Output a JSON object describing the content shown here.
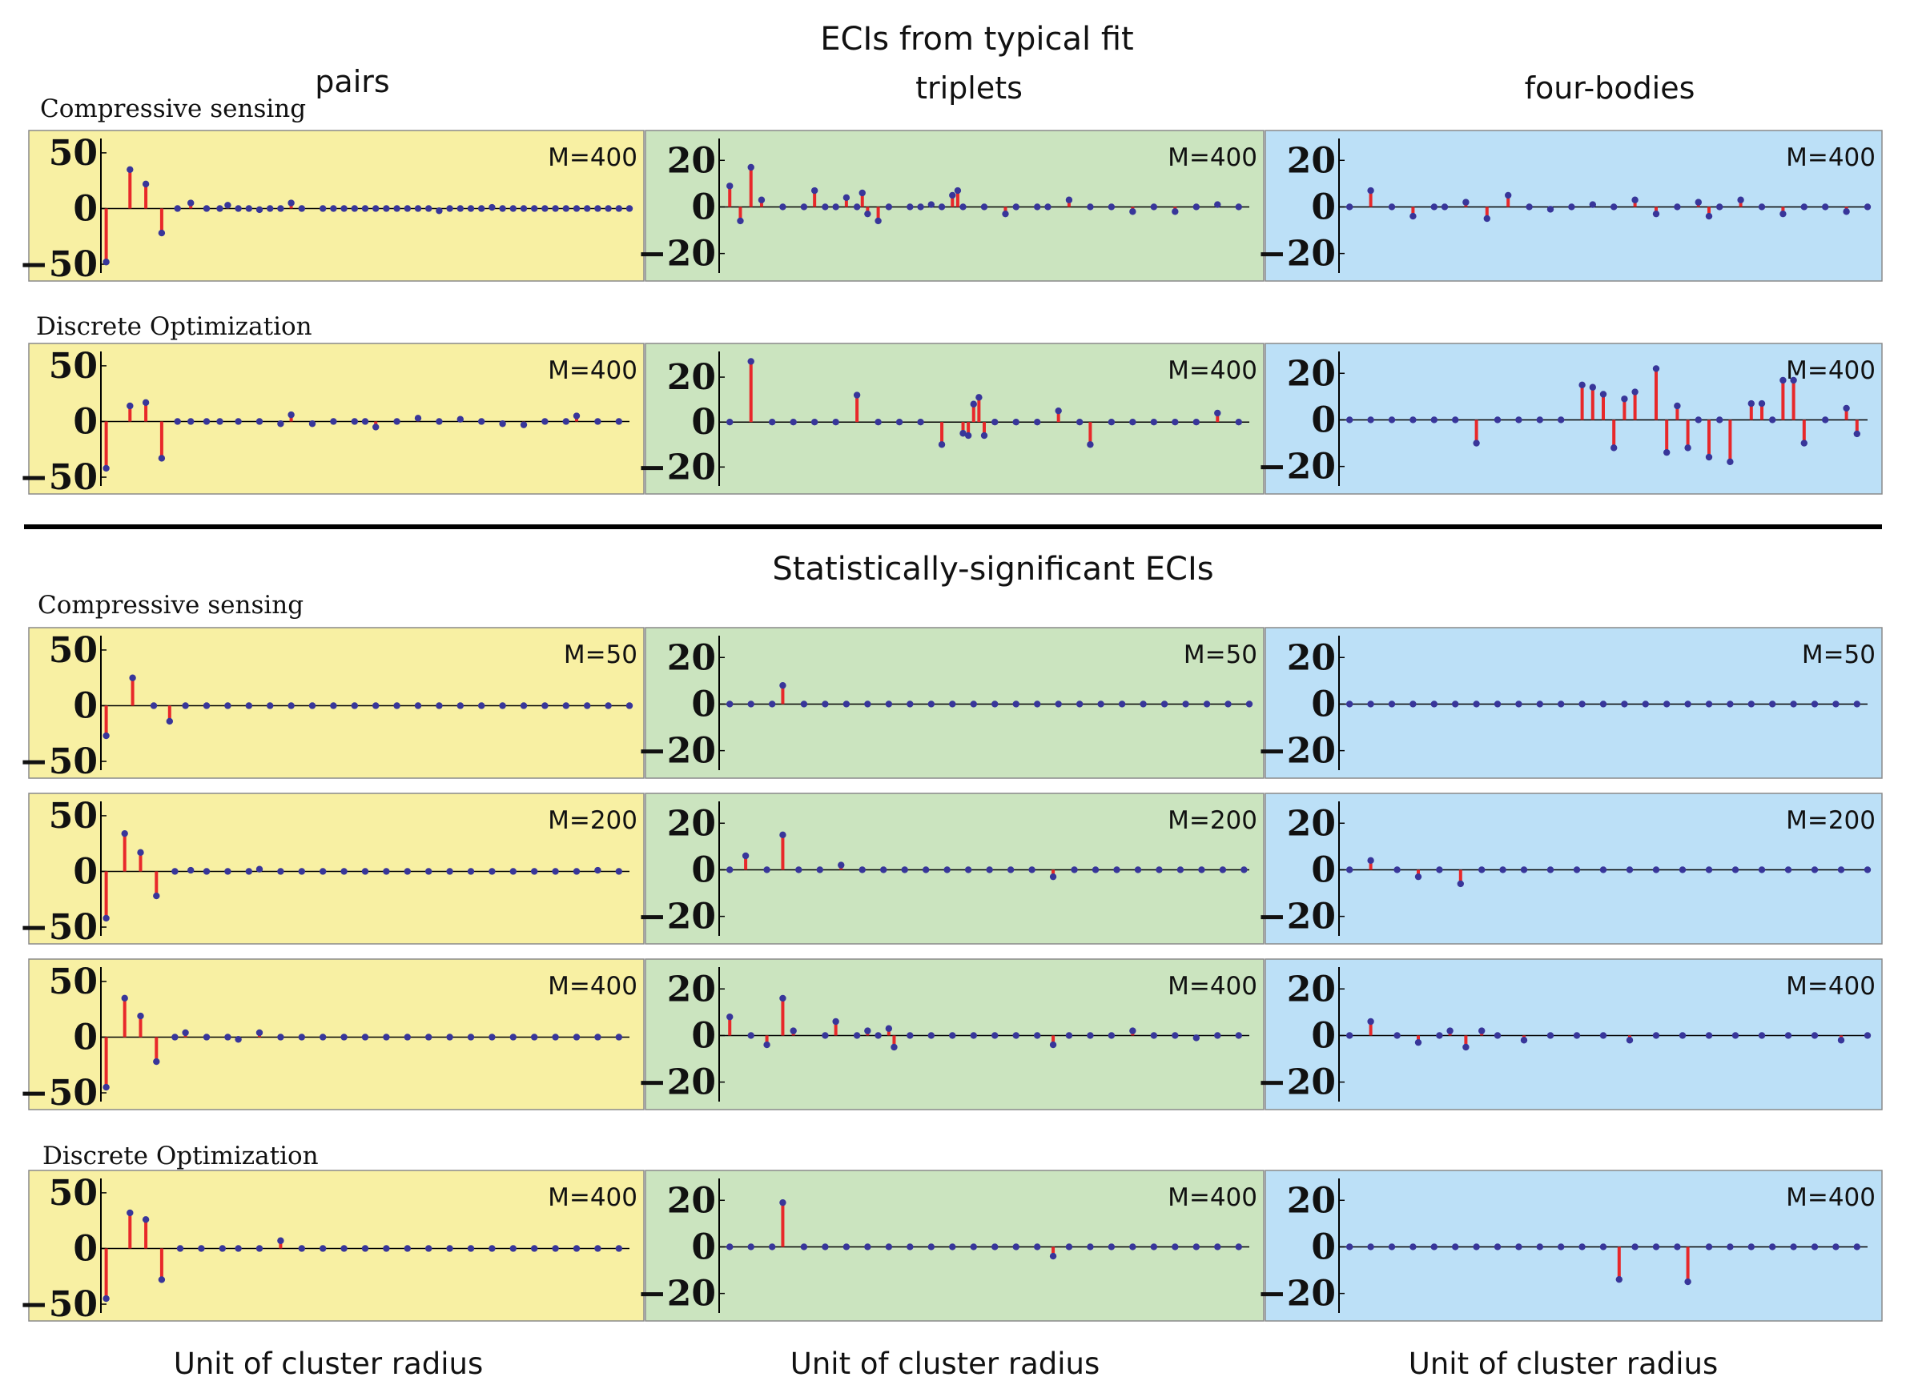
{
  "titles": {
    "top": "ECIs from typical fit",
    "bottom": "Statistically-significant ECIs",
    "col_pairs": "pairs",
    "col_triplets": "triplets",
    "col_fourbodies": "four-bodies",
    "method_cs_1": "Compressive sensing",
    "method_do_1": "Discrete Optimization",
    "method_cs_2": "Compressive sensing",
    "method_do_2": "Discrete Optimization",
    "xlabel_pairs": "Unit of cluster radius",
    "xlabel_triplets": "Unit of cluster radius",
    "xlabel_fourbodies": "Unit of cluster radius"
  },
  "colors": {
    "pairs_bg": "#f8f0a3",
    "triplets_bg": "#cbe4bf",
    "fourbodies_bg": "#bce0f7",
    "stem": "#e8282a",
    "point": "#38369a",
    "axis": "#000000"
  },
  "chart_data": [
    {
      "type": "scatter",
      "section": "ECIs from typical fit",
      "method": "Compressive sensing",
      "cluster": "pairs",
      "label": "M=400",
      "ylim": [
        -55,
        60
      ],
      "yticks": [
        "50",
        "0",
        "−50"
      ],
      "x": [
        0.01,
        0.055,
        0.085,
        0.115,
        0.145,
        0.17,
        0.2,
        0.225,
        0.24,
        0.26,
        0.28,
        0.3,
        0.32,
        0.34,
        0.36,
        0.38,
        0.42,
        0.44,
        0.46,
        0.48,
        0.5,
        0.52,
        0.54,
        0.56,
        0.58,
        0.6,
        0.62,
        0.64,
        0.66,
        0.68,
        0.7,
        0.72,
        0.74,
        0.76,
        0.78,
        0.8,
        0.82,
        0.84,
        0.86,
        0.88,
        0.9,
        0.92,
        0.94,
        0.96,
        0.98,
        1.0
      ],
      "y": [
        -48,
        35,
        22,
        -22,
        0,
        5,
        0,
        0,
        3,
        0,
        0,
        -1,
        0,
        0,
        5,
        0,
        0,
        0,
        0,
        0,
        0,
        0,
        0,
        0,
        0,
        0,
        0,
        -2,
        0,
        0,
        0,
        0,
        1,
        0,
        0,
        0,
        0,
        0,
        0,
        0,
        0,
        0,
        0,
        0,
        0,
        0
      ]
    },
    {
      "type": "scatter",
      "section": "ECIs from typical fit",
      "method": "Compressive sensing",
      "cluster": "triplets",
      "label": "M=400",
      "ylim": [
        -27,
        28
      ],
      "yticks": [
        "20",
        "0",
        "−20"
      ],
      "x": [
        0.02,
        0.04,
        0.06,
        0.08,
        0.12,
        0.16,
        0.18,
        0.2,
        0.22,
        0.24,
        0.26,
        0.27,
        0.28,
        0.3,
        0.32,
        0.36,
        0.38,
        0.4,
        0.42,
        0.44,
        0.45,
        0.46,
        0.5,
        0.54,
        0.56,
        0.6,
        0.62,
        0.66,
        0.7,
        0.74,
        0.78,
        0.82,
        0.86,
        0.9,
        0.94,
        0.98
      ],
      "y": [
        9,
        -6,
        17,
        3,
        0,
        0,
        7,
        0,
        0,
        4,
        0,
        6,
        -3,
        -6,
        0,
        0,
        0,
        1,
        0,
        5,
        7,
        0,
        0,
        -3,
        0,
        0,
        0,
        3,
        0,
        0,
        -2,
        0,
        -2,
        0,
        1,
        0
      ]
    },
    {
      "type": "scatter",
      "section": "ECIs from typical fit",
      "method": "Compressive sensing",
      "cluster": "four-bodies",
      "label": "M=400",
      "ylim": [
        -27,
        28
      ],
      "yticks": [
        "20",
        "0",
        "−20"
      ],
      "x": [
        0.02,
        0.06,
        0.1,
        0.14,
        0.18,
        0.2,
        0.24,
        0.28,
        0.32,
        0.36,
        0.4,
        0.44,
        0.48,
        0.52,
        0.56,
        0.6,
        0.64,
        0.68,
        0.7,
        0.72,
        0.76,
        0.8,
        0.84,
        0.88,
        0.92,
        0.96,
        1.0
      ],
      "y": [
        0,
        7,
        0,
        -4,
        0,
        0,
        2,
        -5,
        5,
        0,
        -1,
        0,
        1,
        0,
        3,
        -3,
        0,
        2,
        -4,
        0,
        3,
        0,
        -3,
        0,
        0,
        -2,
        0
      ]
    },
    {
      "type": "scatter",
      "section": "ECIs from typical fit",
      "method": "Discrete Optimization",
      "cluster": "pairs",
      "label": "M=400",
      "ylim": [
        -55,
        60
      ],
      "yticks": [
        "50",
        "0",
        "−50"
      ],
      "x": [
        0.01,
        0.055,
        0.085,
        0.115,
        0.145,
        0.17,
        0.2,
        0.225,
        0.26,
        0.3,
        0.34,
        0.36,
        0.4,
        0.44,
        0.48,
        0.5,
        0.52,
        0.56,
        0.6,
        0.64,
        0.68,
        0.72,
        0.76,
        0.8,
        0.84,
        0.88,
        0.9,
        0.94,
        0.98
      ],
      "y": [
        -42,
        14,
        17,
        -33,
        0,
        0,
        0,
        0,
        0,
        0,
        -2,
        6,
        -2,
        0,
        0,
        0,
        -5,
        0,
        3,
        0,
        2,
        0,
        -2,
        -3,
        0,
        0,
        5,
        0,
        0
      ]
    },
    {
      "type": "scatter",
      "section": "ECIs from typical fit",
      "method": "Discrete Optimization",
      "cluster": "triplets",
      "label": "M=400",
      "ylim": [
        -27,
        30
      ],
      "yticks": [
        "20",
        "0",
        "−20"
      ],
      "x": [
        0.02,
        0.06,
        0.1,
        0.14,
        0.18,
        0.22,
        0.26,
        0.3,
        0.34,
        0.38,
        0.42,
        0.46,
        0.47,
        0.48,
        0.49,
        0.5,
        0.52,
        0.56,
        0.6,
        0.64,
        0.68,
        0.7,
        0.74,
        0.78,
        0.82,
        0.86,
        0.9,
        0.94,
        0.98
      ],
      "y": [
        0,
        27,
        0,
        0,
        0,
        0,
        12,
        0,
        0,
        0,
        -10,
        -5,
        -6,
        8,
        11,
        -6,
        0,
        0,
        0,
        5,
        0,
        -10,
        0,
        0,
        0,
        0,
        0,
        4,
        0
      ]
    },
    {
      "type": "scatter",
      "section": "ECIs from typical fit",
      "method": "Discrete Optimization",
      "cluster": "four-bodies",
      "label": "M=400",
      "ylim": [
        -27,
        28
      ],
      "yticks": [
        "20",
        "0",
        "−20"
      ],
      "x": [
        0.02,
        0.06,
        0.1,
        0.14,
        0.18,
        0.22,
        0.26,
        0.3,
        0.34,
        0.38,
        0.42,
        0.46,
        0.48,
        0.5,
        0.52,
        0.54,
        0.56,
        0.6,
        0.62,
        0.64,
        0.66,
        0.68,
        0.7,
        0.72,
        0.74,
        0.78,
        0.8,
        0.82,
        0.84,
        0.86,
        0.88,
        0.92,
        0.96,
        0.98
      ],
      "y": [
        0,
        0,
        0,
        0,
        0,
        0,
        -10,
        0,
        0,
        0,
        0,
        15,
        14,
        11,
        -12,
        9,
        12,
        22,
        -14,
        6,
        -12,
        0,
        -16,
        0,
        -18,
        7,
        7,
        0,
        17,
        17,
        -10,
        0,
        5,
        -6
      ]
    },
    {
      "type": "scatter",
      "section": "Statistically-significant ECIs",
      "method": "Compressive sensing",
      "cluster": "pairs",
      "label": "M=50",
      "ylim": [
        -55,
        60
      ],
      "yticks": [
        "50",
        "0",
        "−50"
      ],
      "x": [
        0.01,
        0.06,
        0.1,
        0.13,
        0.16,
        0.2,
        0.24,
        0.28,
        0.32,
        0.36,
        0.4,
        0.44,
        0.48,
        0.52,
        0.56,
        0.6,
        0.64,
        0.68,
        0.72,
        0.76,
        0.8,
        0.84,
        0.88,
        0.92,
        0.96,
        1.0
      ],
      "y": [
        -27,
        25,
        0,
        -14,
        0,
        0,
        0,
        0,
        0,
        0,
        0,
        0,
        0,
        0,
        0,
        0,
        0,
        0,
        0,
        0,
        0,
        0,
        0,
        0,
        0,
        0
      ]
    },
    {
      "type": "scatter",
      "section": "Statistically-significant ECIs",
      "method": "Compressive sensing",
      "cluster": "triplets",
      "label": "M=50",
      "ylim": [
        -27,
        28
      ],
      "yticks": [
        "20",
        "0",
        "−20"
      ],
      "x": [
        0.02,
        0.06,
        0.1,
        0.12,
        0.16,
        0.2,
        0.24,
        0.28,
        0.32,
        0.36,
        0.4,
        0.44,
        0.48,
        0.52,
        0.56,
        0.6,
        0.64,
        0.68,
        0.72,
        0.76,
        0.8,
        0.84,
        0.88,
        0.92,
        0.96,
        1.0
      ],
      "y": [
        0,
        0,
        0,
        8,
        0,
        0,
        0,
        0,
        0,
        0,
        0,
        0,
        0,
        0,
        0,
        0,
        0,
        0,
        0,
        0,
        0,
        0,
        0,
        0,
        0,
        0
      ]
    },
    {
      "type": "scatter",
      "section": "Statistically-significant ECIs",
      "method": "Compressive sensing",
      "cluster": "four-bodies",
      "label": "M=50",
      "ylim": [
        -27,
        28
      ],
      "yticks": [
        "20",
        "0",
        "−20"
      ],
      "x": [
        0.02,
        0.06,
        0.1,
        0.14,
        0.18,
        0.22,
        0.26,
        0.3,
        0.34,
        0.38,
        0.42,
        0.46,
        0.5,
        0.54,
        0.58,
        0.62,
        0.66,
        0.7,
        0.74,
        0.78,
        0.82,
        0.86,
        0.9,
        0.94,
        0.98
      ],
      "y": [
        0,
        0,
        0,
        0,
        0,
        0,
        0,
        0,
        0,
        0,
        0,
        0,
        0,
        0,
        0,
        0,
        0,
        0,
        0,
        0,
        0,
        0,
        0,
        0,
        0
      ]
    },
    {
      "type": "scatter",
      "section": "Statistically-significant ECIs",
      "method": "Compressive sensing",
      "cluster": "pairs",
      "label": "M=200",
      "ylim": [
        -55,
        60
      ],
      "yticks": [
        "50",
        "0",
        "−50"
      ],
      "x": [
        0.01,
        0.045,
        0.075,
        0.105,
        0.14,
        0.17,
        0.2,
        0.24,
        0.28,
        0.3,
        0.34,
        0.38,
        0.42,
        0.46,
        0.5,
        0.54,
        0.58,
        0.62,
        0.66,
        0.7,
        0.74,
        0.78,
        0.82,
        0.86,
        0.9,
        0.94,
        0.98
      ],
      "y": [
        -42,
        34,
        17,
        -22,
        0,
        1,
        0,
        0,
        0,
        2,
        0,
        0,
        0,
        0,
        0,
        0,
        0,
        0,
        0,
        0,
        0,
        0,
        0,
        0,
        0,
        1,
        0
      ]
    },
    {
      "type": "scatter",
      "section": "Statistically-significant ECIs",
      "method": "Compressive sensing",
      "cluster": "triplets",
      "label": "M=200",
      "ylim": [
        -27,
        28
      ],
      "yticks": [
        "20",
        "0",
        "−20"
      ],
      "x": [
        0.02,
        0.05,
        0.09,
        0.12,
        0.15,
        0.19,
        0.23,
        0.27,
        0.31,
        0.35,
        0.39,
        0.43,
        0.47,
        0.51,
        0.55,
        0.59,
        0.63,
        0.67,
        0.71,
        0.75,
        0.79,
        0.83,
        0.87,
        0.91,
        0.95,
        0.99
      ],
      "y": [
        0,
        6,
        0,
        15,
        0,
        0,
        2,
        0,
        0,
        0,
        0,
        0,
        0,
        0,
        0,
        0,
        -3,
        0,
        0,
        0,
        0,
        0,
        0,
        0,
        0,
        0
      ]
    },
    {
      "type": "scatter",
      "section": "Statistically-significant ECIs",
      "method": "Compressive sensing",
      "cluster": "four-bodies",
      "label": "M=200",
      "ylim": [
        -27,
        28
      ],
      "yticks": [
        "20",
        "0",
        "−20"
      ],
      "x": [
        0.02,
        0.06,
        0.11,
        0.15,
        0.19,
        0.23,
        0.27,
        0.31,
        0.35,
        0.4,
        0.45,
        0.5,
        0.55,
        0.6,
        0.65,
        0.7,
        0.75,
        0.8,
        0.85,
        0.9,
        0.95,
        1.0
      ],
      "y": [
        0,
        4,
        0,
        -3,
        0,
        -6,
        0,
        0,
        0,
        0,
        0,
        0,
        0,
        0,
        0,
        0,
        0,
        0,
        0,
        0,
        0,
        0
      ]
    },
    {
      "type": "scatter",
      "section": "Statistically-significant ECIs",
      "method": "Compressive sensing",
      "cluster": "pairs",
      "label": "M=400",
      "ylim": [
        -55,
        60
      ],
      "yticks": [
        "50",
        "0",
        "−50"
      ],
      "x": [
        0.01,
        0.045,
        0.075,
        0.105,
        0.14,
        0.16,
        0.2,
        0.24,
        0.26,
        0.3,
        0.34,
        0.38,
        0.42,
        0.46,
        0.5,
        0.54,
        0.58,
        0.62,
        0.66,
        0.7,
        0.74,
        0.78,
        0.82,
        0.86,
        0.9,
        0.94,
        0.98
      ],
      "y": [
        -45,
        35,
        19,
        -22,
        0,
        4,
        0,
        0,
        -2,
        4,
        0,
        0,
        0,
        0,
        0,
        0,
        0,
        0,
        0,
        0,
        0,
        0,
        0,
        0,
        0,
        0,
        0
      ]
    },
    {
      "type": "scatter",
      "section": "Statistically-significant ECIs",
      "method": "Compressive sensing",
      "cluster": "triplets",
      "label": "M=400",
      "ylim": [
        -27,
        28
      ],
      "yticks": [
        "20",
        "0",
        "−20"
      ],
      "x": [
        0.02,
        0.06,
        0.09,
        0.12,
        0.14,
        0.2,
        0.22,
        0.26,
        0.28,
        0.3,
        0.32,
        0.33,
        0.36,
        0.4,
        0.44,
        0.48,
        0.52,
        0.56,
        0.6,
        0.63,
        0.66,
        0.7,
        0.74,
        0.78,
        0.82,
        0.86,
        0.9,
        0.94,
        0.98
      ],
      "y": [
        8,
        0,
        -4,
        16,
        2,
        0,
        6,
        0,
        2,
        0,
        3,
        -5,
        0,
        0,
        0,
        0,
        0,
        0,
        0,
        -4,
        0,
        0,
        0,
        2,
        0,
        0,
        -1,
        0,
        0
      ]
    },
    {
      "type": "scatter",
      "section": "Statistically-significant ECIs",
      "method": "Compressive sensing",
      "cluster": "four-bodies",
      "label": "M=400",
      "ylim": [
        -27,
        28
      ],
      "yticks": [
        "20",
        "0",
        "−20"
      ],
      "x": [
        0.02,
        0.06,
        0.11,
        0.15,
        0.19,
        0.21,
        0.24,
        0.27,
        0.3,
        0.35,
        0.4,
        0.45,
        0.5,
        0.55,
        0.6,
        0.65,
        0.7,
        0.75,
        0.8,
        0.85,
        0.9,
        0.95,
        1.0
      ],
      "y": [
        0,
        6,
        0,
        -3,
        0,
        2,
        -5,
        2,
        0,
        -2,
        0,
        0,
        0,
        -2,
        0,
        0,
        0,
        0,
        0,
        0,
        0,
        -2,
        0
      ]
    },
    {
      "type": "scatter",
      "section": "Statistically-significant ECIs",
      "method": "Discrete Optimization",
      "cluster": "pairs",
      "label": "M=400",
      "ylim": [
        -55,
        60
      ],
      "yticks": [
        "50",
        "0",
        "−50"
      ],
      "x": [
        0.01,
        0.055,
        0.085,
        0.115,
        0.15,
        0.19,
        0.23,
        0.26,
        0.3,
        0.34,
        0.38,
        0.42,
        0.46,
        0.5,
        0.54,
        0.58,
        0.62,
        0.66,
        0.7,
        0.74,
        0.78,
        0.82,
        0.86,
        0.9,
        0.94,
        0.98
      ],
      "y": [
        -45,
        32,
        26,
        -28,
        0,
        0,
        0,
        0,
        0,
        7,
        0,
        0,
        0,
        0,
        0,
        0,
        0,
        0,
        0,
        0,
        0,
        0,
        0,
        0,
        0,
        0
      ]
    },
    {
      "type": "scatter",
      "section": "Statistically-significant ECIs",
      "method": "Discrete Optimization",
      "cluster": "triplets",
      "label": "M=400",
      "ylim": [
        -27,
        28
      ],
      "yticks": [
        "20",
        "0",
        "−20"
      ],
      "x": [
        0.02,
        0.06,
        0.1,
        0.12,
        0.16,
        0.2,
        0.24,
        0.28,
        0.32,
        0.36,
        0.4,
        0.44,
        0.48,
        0.52,
        0.56,
        0.6,
        0.63,
        0.66,
        0.7,
        0.74,
        0.78,
        0.82,
        0.86,
        0.9,
        0.94,
        0.98
      ],
      "y": [
        0,
        0,
        0,
        19,
        0,
        0,
        0,
        0,
        0,
        0,
        0,
        0,
        0,
        0,
        0,
        0,
        -4,
        0,
        0,
        0,
        0,
        0,
        0,
        0,
        0,
        0
      ]
    },
    {
      "type": "scatter",
      "section": "Statistically-significant ECIs",
      "method": "Discrete Optimization",
      "cluster": "four-bodies",
      "label": "M=400",
      "ylim": [
        -27,
        28
      ],
      "yticks": [
        "20",
        "0",
        "−20"
      ],
      "x": [
        0.02,
        0.06,
        0.1,
        0.14,
        0.18,
        0.22,
        0.26,
        0.3,
        0.34,
        0.38,
        0.42,
        0.46,
        0.5,
        0.53,
        0.56,
        0.6,
        0.64,
        0.66,
        0.7,
        0.74,
        0.78,
        0.82,
        0.86,
        0.9,
        0.94,
        0.98
      ],
      "y": [
        0,
        0,
        0,
        0,
        0,
        0,
        0,
        0,
        0,
        0,
        0,
        0,
        0,
        -14,
        0,
        0,
        0,
        -15,
        0,
        0,
        0,
        0,
        0,
        0,
        0,
        0
      ]
    }
  ]
}
